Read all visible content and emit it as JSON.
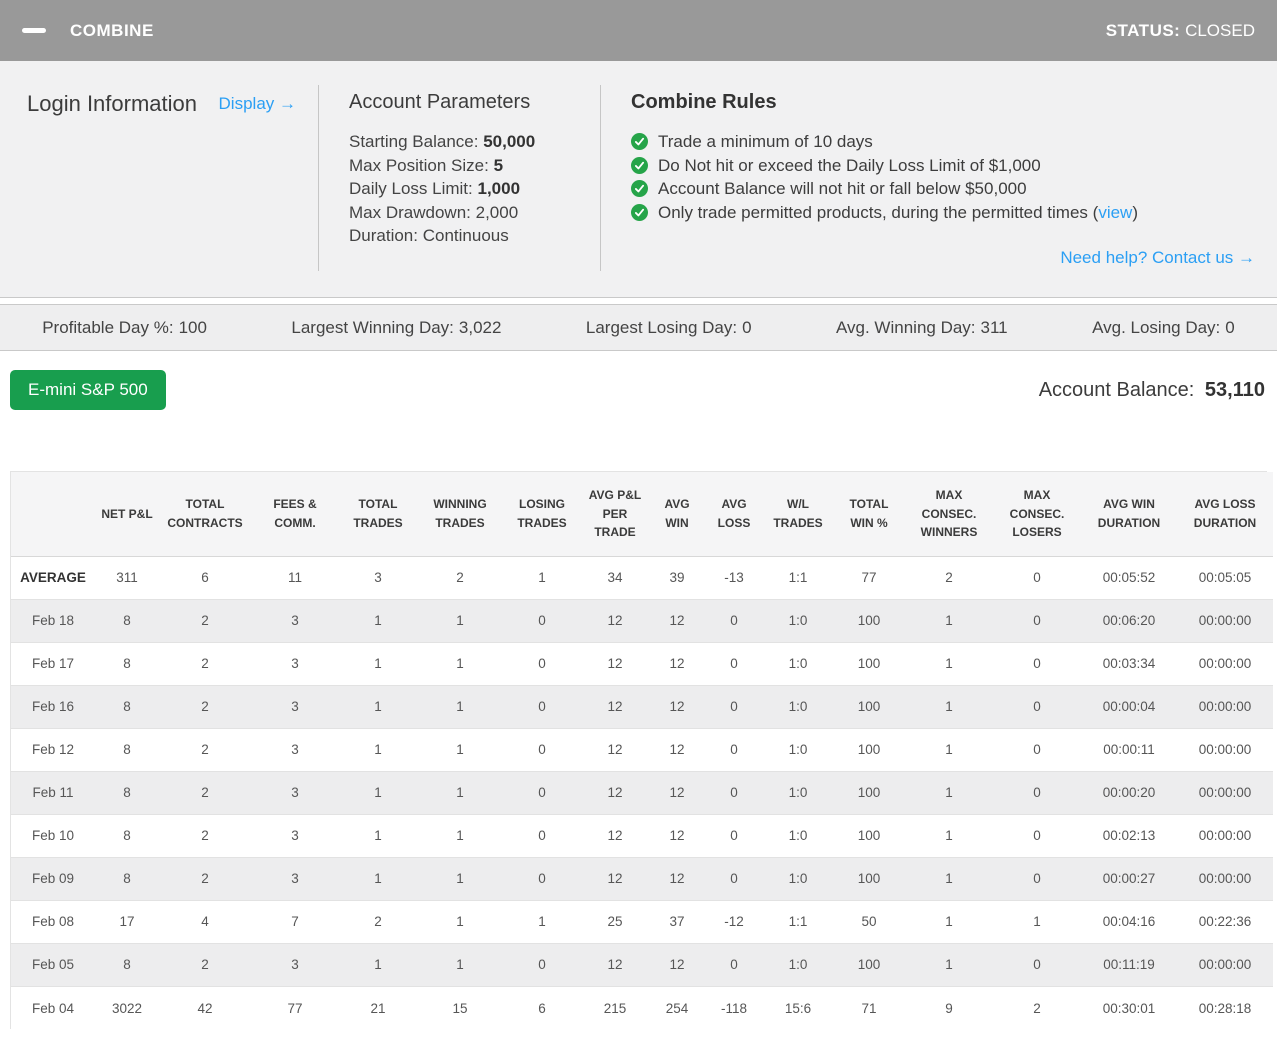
{
  "colors": {
    "header_gray": "#999999",
    "accent_blue": "#2b9ff4",
    "button_green": "#189e4e",
    "check_green": "#26a449"
  },
  "header": {
    "title": "COMBINE",
    "status_label": "STATUS:",
    "status_value": "CLOSED",
    "minimize_icon": "minus-icon"
  },
  "login": {
    "title": "Login Information",
    "display_link": "Display →"
  },
  "account_parameters": {
    "title": "Account Parameters",
    "items": [
      {
        "label": "Starting Balance:",
        "value": "50,000"
      },
      {
        "label": "Max Position Size:",
        "value": "5"
      },
      {
        "label": "Daily Loss Limit:",
        "value": "1,000"
      },
      {
        "label": "Max Drawdown:",
        "value": "2,000"
      },
      {
        "label": "Duration:",
        "value": "Continuous"
      }
    ]
  },
  "combine_rules": {
    "title": "Combine Rules",
    "check_icon": "check-circle-icon",
    "rules": [
      {
        "prefix": "Trade a minimum of 10 days",
        "link": "",
        "suffix": ""
      },
      {
        "prefix": "Do Not hit or exceed the Daily Loss Limit of $1,000",
        "link": "",
        "suffix": ""
      },
      {
        "prefix": "Account Balance will not hit or fall below $50,000",
        "link": "",
        "suffix": ""
      },
      {
        "prefix": "Only trade permitted products, during the permitted times (",
        "link": "view",
        "suffix": ")"
      }
    ],
    "help_link": "Need help? Contact us →"
  },
  "stats_bar": [
    {
      "label": "Profitable Day %:",
      "value": "100"
    },
    {
      "label": "Largest Winning Day:",
      "value": "3,022"
    },
    {
      "label": "Largest Losing Day:",
      "value": "0"
    },
    {
      "label": "Avg. Winning Day:",
      "value": "311"
    },
    {
      "label": "Avg. Losing Day:",
      "value": "0"
    }
  ],
  "account": {
    "product_button": "E-mini S&P 500",
    "balance_label": "Account Balance:",
    "balance_value": "53,110"
  },
  "table": {
    "columns": [
      "",
      "NET P&L",
      "TOTAL CONTRACTS",
      "FEES & COMM.",
      "TOTAL TRADES",
      "WINNING TRADES",
      "LOSING TRADES",
      "AVG P&L PER TRADE",
      "AVG WIN",
      "AVG LOSS",
      "W/L TRADES",
      "TOTAL WIN %",
      "MAX CONSEC. WINNERS",
      "MAX CONSEC. LOSERS",
      "AVG WIN DURATION",
      "AVG LOSS DURATION"
    ],
    "rows": [
      {
        "label": "AVERAGE",
        "bold": true,
        "cells": [
          "311",
          "6",
          "11",
          "3",
          "2",
          "1",
          "34",
          "39",
          "-13",
          "1:1",
          "77",
          "2",
          "0",
          "00:05:52",
          "00:05:05"
        ]
      },
      {
        "label": "Feb 18",
        "bold": false,
        "cells": [
          "8",
          "2",
          "3",
          "1",
          "1",
          "0",
          "12",
          "12",
          "0",
          "1:0",
          "100",
          "1",
          "0",
          "00:06:20",
          "00:00:00"
        ]
      },
      {
        "label": "Feb 17",
        "bold": false,
        "cells": [
          "8",
          "2",
          "3",
          "1",
          "1",
          "0",
          "12",
          "12",
          "0",
          "1:0",
          "100",
          "1",
          "0",
          "00:03:34",
          "00:00:00"
        ]
      },
      {
        "label": "Feb 16",
        "bold": false,
        "cells": [
          "8",
          "2",
          "3",
          "1",
          "1",
          "0",
          "12",
          "12",
          "0",
          "1:0",
          "100",
          "1",
          "0",
          "00:00:04",
          "00:00:00"
        ]
      },
      {
        "label": "Feb 12",
        "bold": false,
        "cells": [
          "8",
          "2",
          "3",
          "1",
          "1",
          "0",
          "12",
          "12",
          "0",
          "1:0",
          "100",
          "1",
          "0",
          "00:00:11",
          "00:00:00"
        ]
      },
      {
        "label": "Feb 11",
        "bold": false,
        "cells": [
          "8",
          "2",
          "3",
          "1",
          "1",
          "0",
          "12",
          "12",
          "0",
          "1:0",
          "100",
          "1",
          "0",
          "00:00:20",
          "00:00:00"
        ]
      },
      {
        "label": "Feb 10",
        "bold": false,
        "cells": [
          "8",
          "2",
          "3",
          "1",
          "1",
          "0",
          "12",
          "12",
          "0",
          "1:0",
          "100",
          "1",
          "0",
          "00:02:13",
          "00:00:00"
        ]
      },
      {
        "label": "Feb 09",
        "bold": false,
        "cells": [
          "8",
          "2",
          "3",
          "1",
          "1",
          "0",
          "12",
          "12",
          "0",
          "1:0",
          "100",
          "1",
          "0",
          "00:00:27",
          "00:00:00"
        ]
      },
      {
        "label": "Feb 08",
        "bold": false,
        "cells": [
          "17",
          "4",
          "7",
          "2",
          "1",
          "1",
          "25",
          "37",
          "-12",
          "1:1",
          "50",
          "1",
          "1",
          "00:04:16",
          "00:22:36"
        ]
      },
      {
        "label": "Feb 05",
        "bold": false,
        "cells": [
          "8",
          "2",
          "3",
          "1",
          "1",
          "0",
          "12",
          "12",
          "0",
          "1:0",
          "100",
          "1",
          "0",
          "00:11:19",
          "00:00:00"
        ]
      },
      {
        "label": "Feb 04",
        "bold": false,
        "cells": [
          "3022",
          "42",
          "77",
          "21",
          "15",
          "6",
          "215",
          "254",
          "-118",
          "15:6",
          "71",
          "9",
          "2",
          "00:30:01",
          "00:28:18"
        ]
      }
    ]
  }
}
